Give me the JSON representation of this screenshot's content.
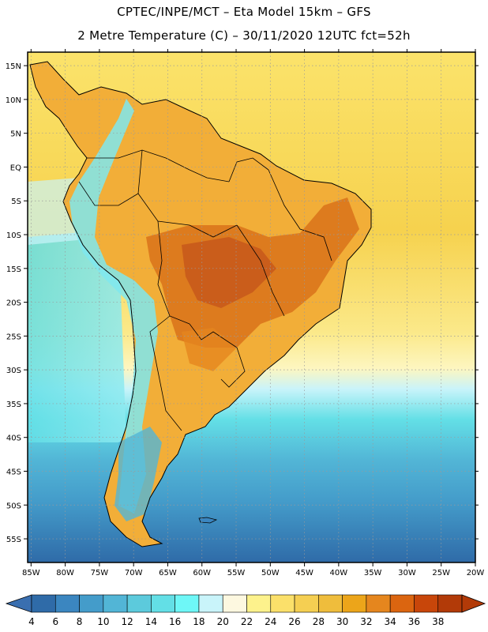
{
  "title": {
    "line1": "CPTEC/INPE/MCT –  Eta Model 15km – GFS",
    "line2": "2 Metre Temperature (C) – 30/11/2020 12UTC fct=52h"
  },
  "axes": {
    "lon_labels": [
      "85W",
      "80W",
      "75W",
      "70W",
      "65W",
      "60W",
      "55W",
      "50W",
      "45W",
      "40W",
      "35W",
      "30W",
      "25W",
      "20W"
    ],
    "lat_labels": [
      "15N",
      "10N",
      "5N",
      "EQ",
      "5S",
      "10S",
      "15S",
      "20S",
      "25S",
      "30S",
      "35S",
      "40S",
      "45S",
      "50S",
      "55S"
    ],
    "lon_range": [
      -85.5,
      -20
    ],
    "lat_range": [
      -58.5,
      17
    ]
  },
  "colorbar": {
    "labels": [
      "4",
      "6",
      "8",
      "10",
      "12",
      "14",
      "16",
      "18",
      "20",
      "22",
      "24",
      "26",
      "28",
      "30",
      "32",
      "34",
      "36",
      "38"
    ],
    "colors": [
      "#3a6fb0",
      "#2f6ba8",
      "#3b86c0",
      "#449cca",
      "#52b5d6",
      "#5ccadc",
      "#63dfe6",
      "#6ef7f7",
      "#c9f4fa",
      "#fdf8e0",
      "#fdf28c",
      "#fbe06a",
      "#f5cf52",
      "#efbd3c",
      "#eca51a",
      "#e5861e",
      "#db6510",
      "#c8460a",
      "#b23a08"
    ]
  },
  "map_layers": {
    "ocean": "#fbe36b",
    "land": "#f3b53d"
  }
}
